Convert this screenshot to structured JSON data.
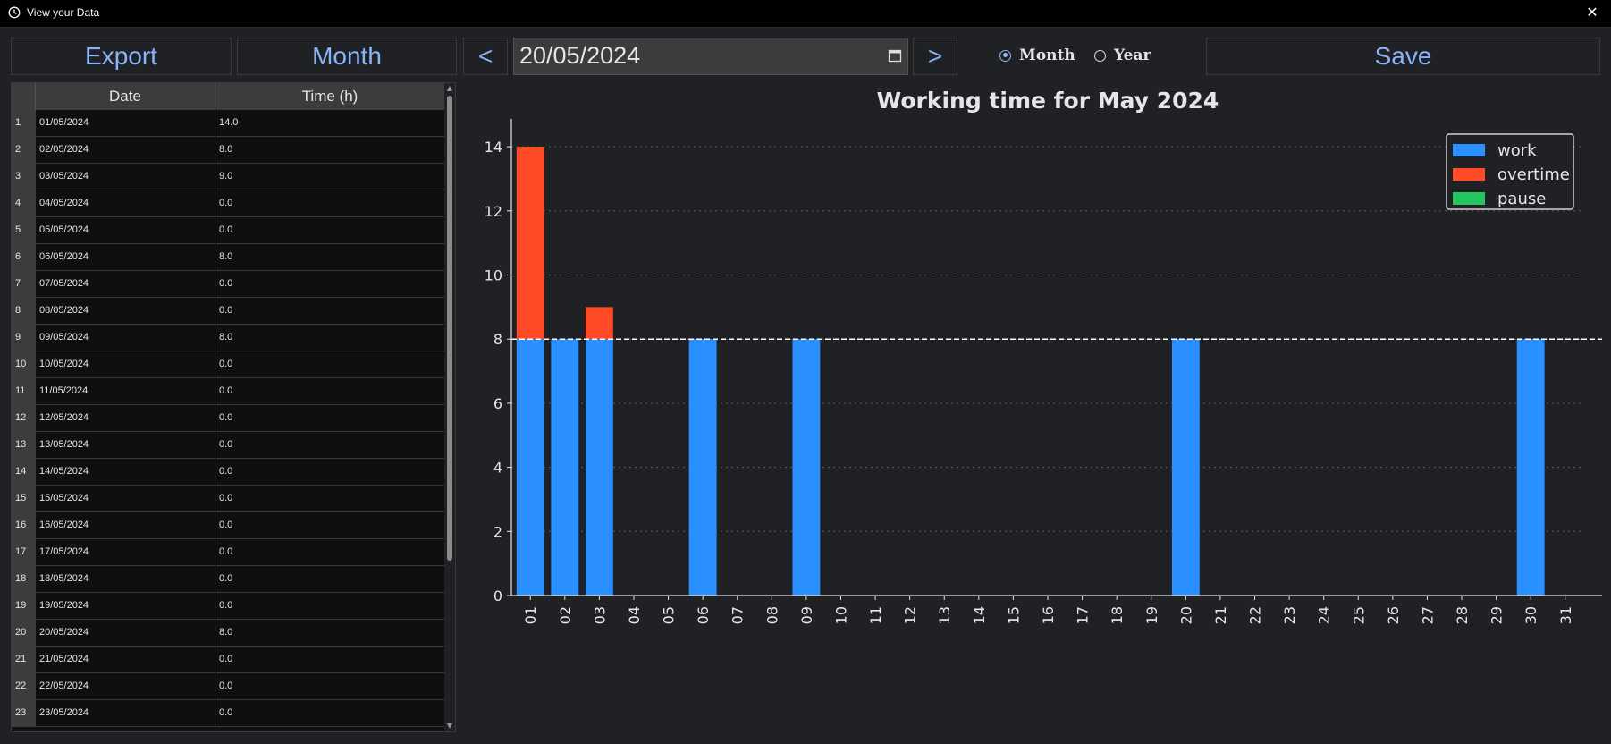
{
  "window": {
    "title": "View your Data",
    "icon": "clock-icon",
    "close_label": "✕"
  },
  "toolbar": {
    "export_label": "Export",
    "month_label": "Month",
    "prev_label": "<",
    "next_label": ">",
    "date_value": "20/05/2024",
    "save_label": "Save",
    "radio_month": "Month",
    "radio_year": "Year",
    "selected_mode": "Month"
  },
  "table": {
    "headers": [
      "Date",
      "Time (h)"
    ],
    "rows": [
      {
        "idx": "1",
        "date": "01/05/2024",
        "time": "14.0"
      },
      {
        "idx": "2",
        "date": "02/05/2024",
        "time": "8.0"
      },
      {
        "idx": "3",
        "date": "03/05/2024",
        "time": "9.0"
      },
      {
        "idx": "4",
        "date": "04/05/2024",
        "time": "0.0"
      },
      {
        "idx": "5",
        "date": "05/05/2024",
        "time": "0.0"
      },
      {
        "idx": "6",
        "date": "06/05/2024",
        "time": "8.0"
      },
      {
        "idx": "7",
        "date": "07/05/2024",
        "time": "0.0"
      },
      {
        "idx": "8",
        "date": "08/05/2024",
        "time": "0.0"
      },
      {
        "idx": "9",
        "date": "09/05/2024",
        "time": "8.0"
      },
      {
        "idx": "10",
        "date": "10/05/2024",
        "time": "0.0"
      },
      {
        "idx": "11",
        "date": "11/05/2024",
        "time": "0.0"
      },
      {
        "idx": "12",
        "date": "12/05/2024",
        "time": "0.0"
      },
      {
        "idx": "13",
        "date": "13/05/2024",
        "time": "0.0"
      },
      {
        "idx": "14",
        "date": "14/05/2024",
        "time": "0.0"
      },
      {
        "idx": "15",
        "date": "15/05/2024",
        "time": "0.0"
      },
      {
        "idx": "16",
        "date": "16/05/2024",
        "time": "0.0"
      },
      {
        "idx": "17",
        "date": "17/05/2024",
        "time": "0.0"
      },
      {
        "idx": "18",
        "date": "18/05/2024",
        "time": "0.0"
      },
      {
        "idx": "19",
        "date": "19/05/2024",
        "time": "0.0"
      },
      {
        "idx": "20",
        "date": "20/05/2024",
        "time": "8.0"
      },
      {
        "idx": "21",
        "date": "21/05/2024",
        "time": "0.0"
      },
      {
        "idx": "22",
        "date": "22/05/2024",
        "time": "0.0"
      },
      {
        "idx": "23",
        "date": "23/05/2024",
        "time": "0.0"
      }
    ]
  },
  "chart_data": {
    "type": "bar",
    "title": "Working time for May 2024",
    "categories": [
      "01",
      "02",
      "03",
      "04",
      "05",
      "06",
      "07",
      "08",
      "09",
      "10",
      "11",
      "12",
      "13",
      "14",
      "15",
      "16",
      "17",
      "18",
      "19",
      "20",
      "21",
      "22",
      "23",
      "24",
      "25",
      "26",
      "27",
      "28",
      "29",
      "30",
      "31"
    ],
    "series": [
      {
        "name": "work",
        "color": "#2b90ff",
        "values": [
          8,
          8,
          8,
          0,
          0,
          8,
          0,
          0,
          8,
          0,
          0,
          0,
          0,
          0,
          0,
          0,
          0,
          0,
          0,
          8,
          0,
          0,
          0,
          0,
          0,
          0,
          0,
          0,
          0,
          8,
          0
        ]
      },
      {
        "name": "overtime",
        "color": "#ff4b28",
        "values": [
          6,
          0,
          1,
          0,
          0,
          0,
          0,
          0,
          0,
          0,
          0,
          0,
          0,
          0,
          0,
          0,
          0,
          0,
          0,
          0,
          0,
          0,
          0,
          0,
          0,
          0,
          0,
          0,
          0,
          0,
          0
        ]
      },
      {
        "name": "pause",
        "color": "#22c55e",
        "values": [
          0,
          0,
          0,
          0,
          0,
          0,
          0,
          0,
          0,
          0,
          0,
          0,
          0,
          0,
          0,
          0,
          0,
          0,
          0,
          0,
          0,
          0,
          0,
          0,
          0,
          0,
          0,
          0,
          0,
          0,
          0
        ]
      }
    ],
    "stacked": true,
    "yticks": [
      0,
      2,
      4,
      6,
      8,
      10,
      12,
      14
    ],
    "ylim": [
      0,
      14.7
    ],
    "reference_line": 8,
    "grid": "y-dotted",
    "legend_position": "top-right",
    "xlabel": "",
    "ylabel": ""
  }
}
